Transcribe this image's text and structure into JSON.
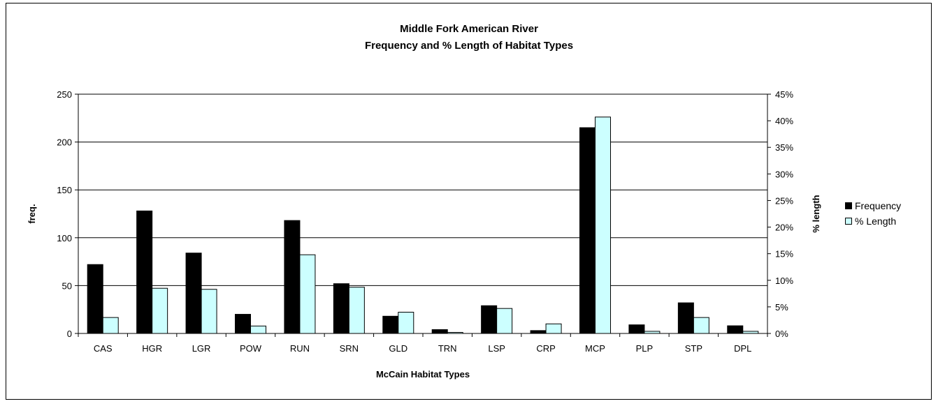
{
  "chart_data": {
    "type": "bar",
    "title": "Middle Fork American River",
    "subtitle": "Frequency and % Length of Habitat Types",
    "xlabel": "McCain Habitat Types",
    "ylabel": "freq.",
    "y2label": "% length",
    "ylim": [
      0,
      250
    ],
    "y2lim": [
      0,
      0.45
    ],
    "yticks": [
      "0",
      "50",
      "100",
      "150",
      "200",
      "250"
    ],
    "y2ticks": [
      "0%",
      "5%",
      "10%",
      "15%",
      "20%",
      "25%",
      "30%",
      "35%",
      "40%",
      "45%"
    ],
    "grid": true,
    "legend_position": "right",
    "categories": [
      "CAS",
      "HGR",
      "LGR",
      "POW",
      "RUN",
      "SRN",
      "GLD",
      "TRN",
      "LSP",
      "CRP",
      "MCP",
      "PLP",
      "STP",
      "DPL"
    ],
    "series": [
      {
        "name": "Frequency",
        "axis": "left",
        "color": "#000000",
        "values": [
          72,
          128,
          84,
          20,
          118,
          52,
          18,
          4,
          29,
          3,
          215,
          9,
          32,
          8
        ]
      },
      {
        "name": "% Length",
        "axis": "right",
        "color": "#ccffff",
        "values": [
          0.03,
          0.085,
          0.083,
          0.014,
          0.148,
          0.087,
          0.04,
          0.002,
          0.047,
          0.018,
          0.407,
          0.004,
          0.03,
          0.004
        ]
      }
    ]
  }
}
